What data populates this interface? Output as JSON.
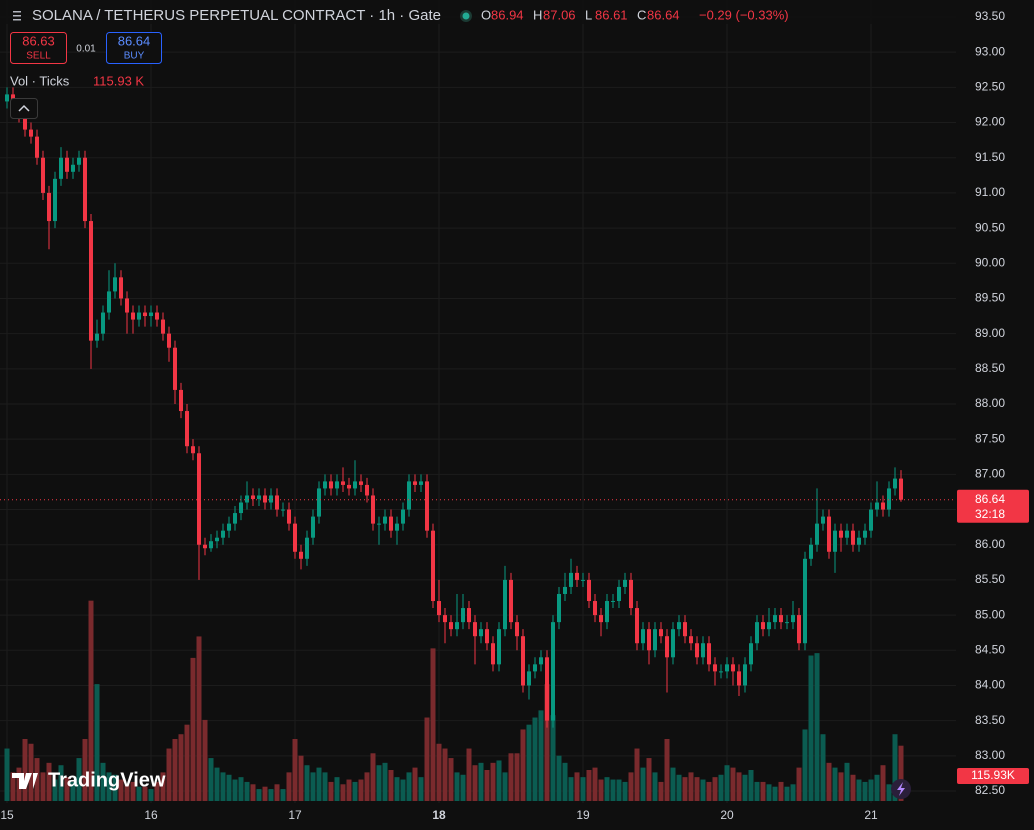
{
  "chart_data": {
    "type": "candlestick",
    "title": "SOLANA / TETHERUS PERPETUAL CONTRACT · 1h · Gate",
    "ohlc_legend": [
      {
        "label": "O",
        "value": 86.94
      },
      {
        "label": "H",
        "value": 87.06
      },
      {
        "label": "L",
        "value": 86.61
      },
      {
        "label": "C",
        "value": 86.64
      }
    ],
    "change": {
      "value": -0.29,
      "label": "−0.29 (−0.33%)"
    },
    "sell": {
      "price": 86.63,
      "label": "SELL"
    },
    "spread": 0.01,
    "buy": {
      "price": 86.64,
      "label": "BUY"
    },
    "volume_legend": {
      "label": "Vol · Ticks",
      "value": {
        "value": 115.93,
        "label": "115.93 K"
      }
    },
    "last_price": 86.64,
    "countdown": "32:18",
    "volume_badge": {
      "value": 115.93,
      "label": "115.93K"
    },
    "watermark": "TradingView",
    "up_color": "#089981",
    "down_color": "#f23645",
    "up_volume_color": "#0b5c51",
    "down_volume_color": "#7a2a2d",
    "grid": true,
    "ylim": [
      82.5,
      93.5
    ],
    "yticks": [
      {
        "value": 82.5,
        "label": "82.50"
      },
      {
        "value": 83,
        "label": "83.00"
      },
      {
        "value": 83.5,
        "label": "83.50"
      },
      {
        "value": 84,
        "label": "84.00"
      },
      {
        "value": 84.5,
        "label": "84.50"
      },
      {
        "value": 85,
        "label": "85.00"
      },
      {
        "value": 85.5,
        "label": "85.50"
      },
      {
        "value": 86,
        "label": "86.00"
      },
      {
        "value": 86.5,
        "label": "86.50"
      },
      {
        "value": 87,
        "label": "87.00"
      },
      {
        "value": 87.5,
        "label": "87.50"
      },
      {
        "value": 88,
        "label": "88.00"
      },
      {
        "value": 88.5,
        "label": "88.50"
      },
      {
        "value": 89,
        "label": "89.00"
      },
      {
        "value": 89.5,
        "label": "89.50"
      },
      {
        "value": 90,
        "label": "90.00"
      },
      {
        "value": 90.5,
        "label": "90.50"
      },
      {
        "value": 91,
        "label": "91.00"
      },
      {
        "value": 91.5,
        "label": "91.50"
      },
      {
        "value": 92,
        "label": "92.00"
      },
      {
        "value": 92.5,
        "label": "92.50"
      },
      {
        "value": 93,
        "label": "93.00"
      },
      {
        "value": 93.5,
        "label": "93.50"
      }
    ],
    "volume_ylim": [
      0,
      1000
    ],
    "categories": [
      "15",
      null,
      null,
      null,
      null,
      null,
      null,
      null,
      null,
      null,
      null,
      null,
      null,
      null,
      null,
      null,
      null,
      null,
      null,
      null,
      null,
      null,
      null,
      null,
      "16",
      null,
      null,
      null,
      null,
      null,
      null,
      null,
      null,
      null,
      null,
      null,
      null,
      null,
      null,
      null,
      null,
      null,
      null,
      null,
      null,
      null,
      null,
      null,
      "17",
      null,
      null,
      null,
      null,
      null,
      null,
      null,
      null,
      null,
      null,
      null,
      null,
      null,
      null,
      null,
      null,
      null,
      null,
      null,
      null,
      null,
      null,
      null,
      "18",
      null,
      null,
      null,
      null,
      null,
      null,
      null,
      null,
      null,
      null,
      null,
      null,
      null,
      null,
      null,
      null,
      null,
      null,
      null,
      null,
      null,
      null,
      null,
      "19",
      null,
      null,
      null,
      null,
      null,
      null,
      null,
      null,
      null,
      null,
      null,
      null,
      null,
      null,
      null,
      null,
      null,
      null,
      null,
      null,
      null,
      null,
      null,
      "20",
      null,
      null,
      null,
      null,
      null,
      null,
      null,
      null,
      null,
      null,
      null,
      null,
      null,
      null,
      null,
      null,
      null,
      null,
      null,
      null,
      null,
      null,
      null,
      "21",
      null,
      null,
      null,
      null,
      null
    ],
    "open": [
      92.3,
      92.4,
      92.2,
      92.1,
      91.9,
      91.8,
      91.5,
      91.0,
      90.6,
      91.2,
      91.5,
      91.3,
      91.4,
      91.5,
      90.6,
      88.9,
      89.0,
      89.3,
      89.6,
      89.8,
      89.5,
      89.3,
      89.2,
      89.3,
      89.25,
      89.3,
      89.2,
      89.0,
      88.8,
      88.2,
      87.9,
      87.4,
      87.3,
      86.0,
      85.95,
      86.05,
      86.1,
      86.2,
      86.3,
      86.45,
      86.6,
      86.7,
      86.65,
      86.7,
      86.6,
      86.7,
      86.5,
      86.5,
      86.3,
      85.9,
      85.8,
      86.1,
      86.4,
      86.8,
      86.9,
      86.8,
      86.9,
      86.85,
      86.8,
      86.9,
      86.85,
      86.7,
      86.3,
      86.3,
      86.4,
      86.2,
      86.3,
      86.5,
      86.9,
      86.85,
      86.9,
      86.2,
      85.2,
      85.0,
      84.9,
      84.8,
      84.9,
      85.1,
      84.9,
      84.7,
      84.8,
      84.6,
      84.3,
      84.8,
      85.5,
      84.9,
      84.7,
      84.0,
      84.2,
      84.3,
      84.4,
      83.5,
      84.9,
      85.3,
      85.4,
      85.6,
      85.5,
      85.5,
      85.2,
      85.0,
      84.9,
      85.2,
      85.2,
      85.4,
      85.5,
      85.1,
      84.6,
      84.8,
      84.5,
      84.8,
      84.7,
      84.4,
      84.8,
      84.9,
      84.7,
      84.6,
      84.4,
      84.6,
      84.3,
      84.2,
      84.2,
      84.3,
      84.2,
      84.0,
      84.3,
      84.6,
      84.9,
      84.8,
      84.9,
      85.0,
      84.9,
      84.9,
      85.0,
      84.6,
      85.8,
      86.0,
      86.3,
      86.4,
      85.9,
      86.2,
      86.1,
      86.2,
      86.0,
      86.1,
      86.2,
      86.5,
      86.6,
      86.5,
      86.8,
      86.94
    ],
    "high": [
      92.5,
      92.5,
      92.3,
      92.2,
      92.0,
      91.9,
      91.6,
      91.1,
      91.3,
      91.65,
      91.6,
      91.5,
      91.6,
      91.6,
      90.7,
      89.2,
      89.4,
      89.9,
      90.0,
      89.9,
      89.6,
      89.4,
      89.4,
      89.4,
      89.4,
      89.4,
      89.3,
      89.1,
      88.9,
      88.3,
      88.0,
      87.5,
      87.4,
      86.1,
      86.15,
      86.2,
      86.3,
      86.4,
      86.55,
      86.7,
      86.9,
      86.8,
      86.8,
      86.8,
      86.8,
      86.8,
      86.6,
      86.6,
      86.4,
      86.0,
      86.2,
      86.5,
      86.9,
      87.0,
      87.0,
      87.0,
      87.1,
      86.95,
      87.2,
      87.0,
      86.95,
      86.8,
      86.4,
      86.5,
      86.5,
      86.4,
      86.6,
      87.0,
      87.0,
      87.0,
      87.0,
      86.3,
      85.5,
      85.1,
      85.0,
      85.3,
      85.3,
      85.2,
      85.0,
      84.9,
      84.9,
      84.7,
      84.9,
      85.7,
      85.6,
      85.0,
      84.8,
      84.3,
      84.4,
      84.5,
      84.5,
      85.0,
      85.4,
      85.6,
      85.8,
      85.7,
      85.6,
      85.6,
      85.3,
      85.1,
      85.3,
      85.3,
      85.5,
      85.6,
      85.6,
      85.2,
      84.9,
      84.9,
      84.9,
      84.9,
      84.8,
      84.9,
      85.0,
      85.0,
      84.8,
      84.7,
      84.7,
      84.7,
      84.4,
      84.3,
      84.4,
      84.4,
      84.3,
      84.4,
      84.7,
      85.0,
      85.0,
      85.1,
      85.1,
      85.1,
      85.0,
      85.2,
      85.1,
      85.9,
      86.1,
      86.8,
      86.5,
      86.5,
      86.3,
      86.3,
      86.3,
      86.3,
      86.2,
      86.3,
      86.6,
      86.9,
      86.7,
      86.9,
      87.1,
      87.06
    ],
    "low": [
      92.2,
      92.1,
      92.0,
      91.8,
      91.7,
      91.4,
      90.9,
      90.2,
      90.5,
      91.1,
      91.2,
      91.2,
      91.3,
      90.5,
      88.5,
      88.8,
      88.9,
      89.2,
      89.5,
      89.4,
      89.0,
      89.0,
      89.1,
      89.1,
      89.1,
      89.1,
      88.9,
      88.6,
      88.0,
      87.8,
      87.3,
      87.2,
      85.5,
      85.85,
      85.9,
      85.95,
      86.0,
      86.1,
      86.2,
      86.35,
      86.5,
      86.55,
      86.55,
      86.5,
      86.5,
      86.4,
      86.4,
      86.2,
      85.8,
      85.65,
      85.7,
      86.0,
      86.3,
      86.7,
      86.7,
      86.7,
      86.75,
      86.7,
      86.7,
      86.75,
      86.6,
      86.2,
      86.0,
      86.2,
      86.1,
      86.0,
      86.2,
      86.4,
      86.75,
      86.75,
      86.1,
      85.1,
      84.9,
      84.6,
      84.7,
      84.7,
      84.8,
      84.8,
      84.3,
      84.6,
      84.5,
      84.2,
      84.2,
      84.7,
      84.8,
      84.5,
      83.9,
      83.8,
      84.1,
      84.2,
      83.4,
      83.4,
      84.8,
      85.2,
      85.3,
      85.4,
      85.4,
      85.1,
      84.9,
      84.7,
      84.8,
      85.1,
      85.1,
      85.3,
      85.0,
      84.5,
      84.5,
      84.3,
      84.4,
      84.6,
      83.9,
      84.3,
      84.7,
      84.6,
      84.5,
      84.3,
      84.3,
      84.2,
      84.0,
      84.1,
      84.1,
      84.0,
      83.85,
      83.9,
      84.2,
      84.5,
      84.7,
      84.7,
      84.8,
      84.8,
      84.8,
      84.8,
      84.5,
      84.5,
      85.7,
      85.9,
      86.2,
      85.8,
      85.6,
      85.9,
      86.0,
      85.9,
      85.9,
      86.0,
      86.1,
      86.4,
      86.4,
      86.4,
      86.7,
      86.61
    ],
    "close": [
      92.4,
      92.2,
      92.1,
      91.9,
      91.8,
      91.5,
      91.0,
      90.6,
      91.2,
      91.5,
      91.3,
      91.4,
      91.5,
      90.6,
      88.9,
      89.0,
      89.3,
      89.6,
      89.8,
      89.5,
      89.3,
      89.2,
      89.3,
      89.25,
      89.3,
      89.2,
      89.0,
      88.8,
      88.2,
      87.9,
      87.4,
      87.3,
      86.0,
      85.95,
      86.05,
      86.1,
      86.2,
      86.3,
      86.45,
      86.6,
      86.7,
      86.65,
      86.7,
      86.6,
      86.7,
      86.5,
      86.5,
      86.3,
      85.9,
      85.8,
      86.1,
      86.4,
      86.8,
      86.9,
      86.8,
      86.9,
      86.85,
      86.8,
      86.9,
      86.85,
      86.7,
      86.3,
      86.3,
      86.4,
      86.2,
      86.3,
      86.5,
      86.9,
      86.85,
      86.9,
      86.2,
      85.2,
      85.0,
      84.9,
      84.8,
      84.9,
      85.1,
      84.9,
      84.7,
      84.8,
      84.6,
      84.3,
      84.8,
      85.5,
      84.9,
      84.7,
      84.0,
      84.2,
      84.3,
      84.4,
      83.5,
      84.9,
      85.3,
      85.4,
      85.6,
      85.5,
      85.5,
      85.2,
      85.0,
      84.9,
      85.2,
      85.2,
      85.4,
      85.5,
      85.1,
      84.6,
      84.8,
      84.5,
      84.8,
      84.7,
      84.4,
      84.8,
      84.9,
      84.7,
      84.6,
      84.4,
      84.6,
      84.3,
      84.2,
      84.2,
      84.3,
      84.2,
      84.0,
      84.3,
      84.6,
      84.9,
      84.8,
      84.9,
      85.0,
      84.9,
      84.9,
      85.0,
      84.6,
      85.8,
      86.0,
      86.3,
      86.4,
      85.9,
      86.2,
      86.1,
      86.2,
      86.0,
      86.1,
      86.2,
      86.5,
      86.6,
      86.5,
      86.8,
      86.94,
      86.64
    ],
    "volume": [
      110,
      60,
      70,
      130,
      120,
      90,
      60,
      80,
      45,
      75,
      50,
      40,
      90,
      130,
      420,
      245,
      80,
      60,
      55,
      45,
      35,
      40,
      30,
      30,
      25,
      40,
      60,
      110,
      130,
      140,
      160,
      300,
      345,
      170,
      90,
      70,
      60,
      55,
      45,
      50,
      40,
      35,
      25,
      30,
      25,
      35,
      25,
      60,
      130,
      95,
      75,
      60,
      70,
      60,
      40,
      50,
      35,
      45,
      40,
      45,
      60,
      100,
      75,
      80,
      65,
      50,
      45,
      60,
      70,
      50,
      175,
      320,
      120,
      110,
      90,
      60,
      55,
      110,
      75,
      80,
      65,
      80,
      85,
      60,
      100,
      100,
      150,
      160,
      175,
      190,
      245,
      180,
      95,
      80,
      50,
      60,
      50,
      65,
      70,
      45,
      50,
      45,
      45,
      40,
      60,
      110,
      70,
      90,
      60,
      40,
      130,
      70,
      55,
      50,
      60,
      50,
      45,
      40,
      50,
      55,
      75,
      70,
      60,
      55,
      65,
      40,
      40,
      35,
      30,
      40,
      30,
      35,
      70,
      150,
      305,
      310,
      140,
      80,
      70,
      60,
      80,
      55,
      45,
      40,
      45,
      55,
      75,
      35,
      140,
      115.93
    ]
  }
}
